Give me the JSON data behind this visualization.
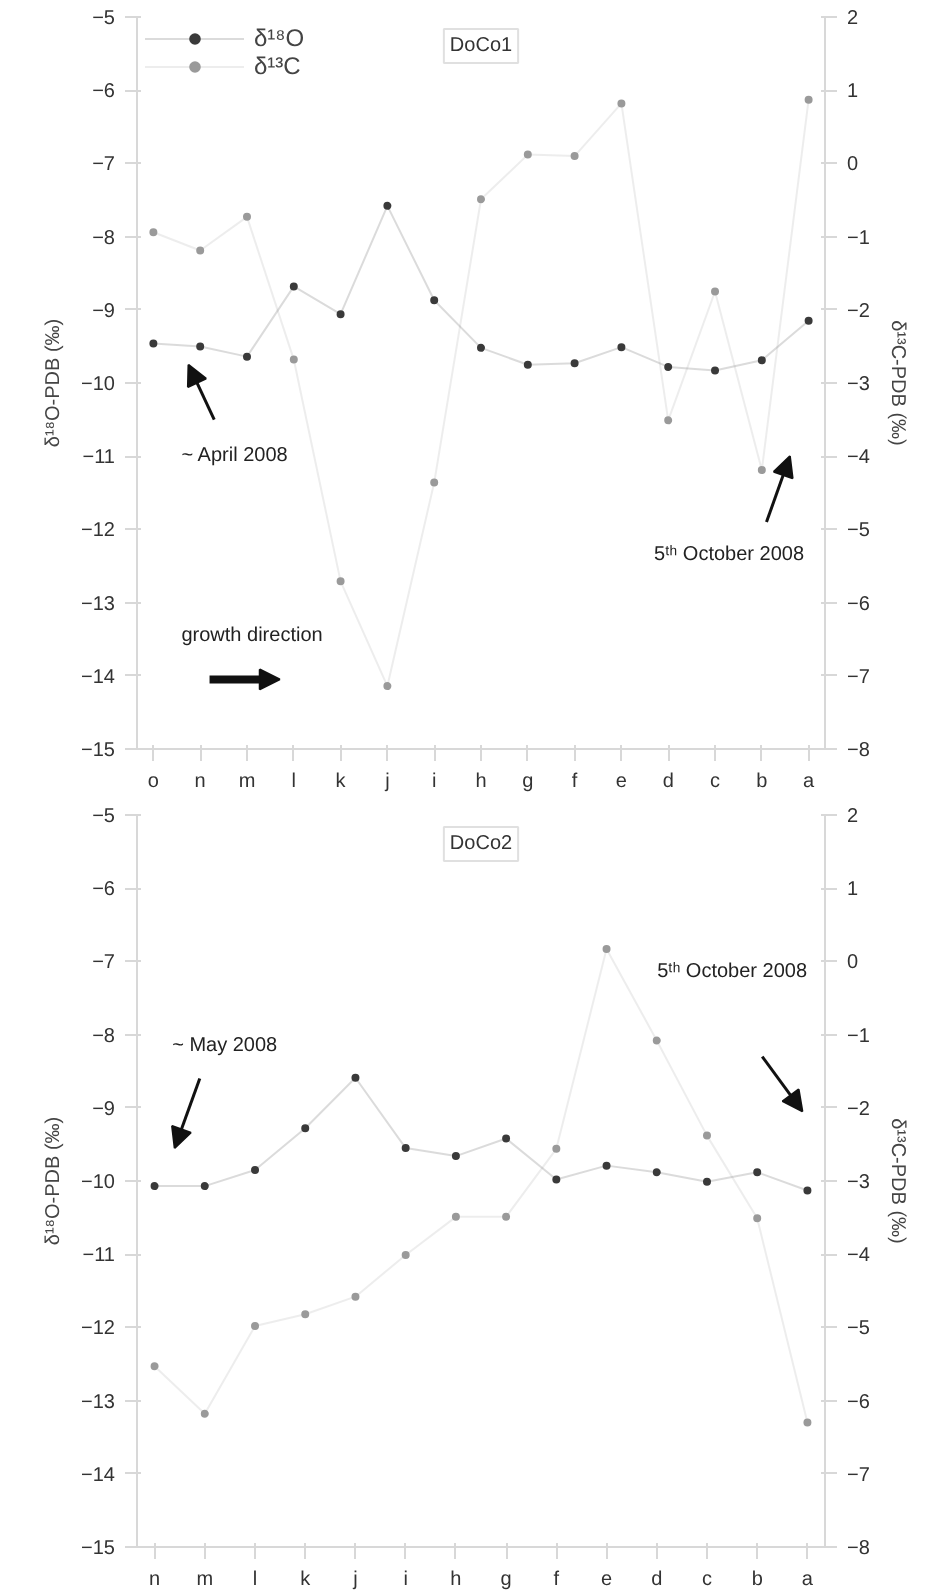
{
  "chart_data": [
    {
      "type": "line",
      "title": "DoCo1",
      "ylabel": "δ¹⁸O-PDB (‰)",
      "y2label": "δ¹³C-PDB (‰)",
      "categories": [
        "o",
        "n",
        "m",
        "l",
        "k",
        "j",
        "i",
        "h",
        "g",
        "f",
        "e",
        "d",
        "c",
        "b",
        "a"
      ],
      "ylim": [
        -15,
        -5
      ],
      "yticks": [
        -15,
        -14,
        -13,
        -12,
        -11,
        -10,
        -9,
        -8,
        -7,
        -6,
        -5
      ],
      "y2lim": [
        -8,
        2
      ],
      "y2ticks": [
        -8,
        -7,
        -6,
        -5,
        -4,
        -3,
        -2,
        -1,
        0,
        1,
        2
      ],
      "marker": "circle",
      "line_style": "solid",
      "grid": false,
      "legend": "top left",
      "series": [
        {
          "name": "δ¹⁸O",
          "color": "#3a3a3a",
          "values": [
            -9.46,
            -9.5,
            -9.64,
            -8.68,
            -9.06,
            -7.58,
            -8.87,
            -9.52,
            -9.75,
            -9.73,
            -9.51,
            -9.78,
            -9.83,
            -9.69,
            -9.15
          ]
        },
        {
          "name": "δ¹³C",
          "color": "#9a9a9a",
          "axis": "y2",
          "values": [
            -0.94,
            -1.19,
            -0.73,
            -2.68,
            -5.71,
            -7.14,
            -4.36,
            -0.49,
            0.12,
            0.1,
            0.82,
            -3.51,
            -1.75,
            -4.19,
            0.87
          ]
        }
      ],
      "annotations": [
        "~ April 2008",
        "5ᵗʰ October 2008",
        "growth direction"
      ]
    },
    {
      "type": "line",
      "title": "DoCo2",
      "ylabel": "δ¹⁸O-PDB (‰)",
      "y2label": "δ¹³C-PDB (‰)",
      "categories": [
        "n",
        "m",
        "l",
        "k",
        "j",
        "i",
        "h",
        "g",
        "f",
        "e",
        "d",
        "c",
        "b",
        "a"
      ],
      "ylim": [
        -15,
        -5
      ],
      "yticks": [
        -15,
        -14,
        -13,
        -12,
        -11,
        -10,
        -9,
        -8,
        -7,
        -6,
        -5
      ],
      "y2lim": [
        -8,
        2
      ],
      "y2ticks": [
        -8,
        -7,
        -6,
        -5,
        -4,
        -3,
        -2,
        -1,
        0,
        1,
        2
      ],
      "marker": "circle",
      "line_style": "solid",
      "grid": false,
      "legend": false,
      "series": [
        {
          "color": "#3a3a3a",
          "values": [
            -10.07,
            -10.07,
            -9.85,
            -9.28,
            -8.59,
            -9.55,
            -9.66,
            -9.42,
            -9.98,
            -9.79,
            -9.88,
            -10.01,
            -9.88,
            -10.13
          ]
        },
        {
          "color": "#9a9a9a",
          "axis": "y2",
          "values": [
            -5.53,
            -6.18,
            -4.98,
            -4.82,
            -4.58,
            -4.01,
            -3.49,
            -3.49,
            -2.56,
            0.17,
            -1.08,
            -2.38,
            -3.51,
            -6.3
          ]
        }
      ],
      "annotations": [
        "~ May 2008",
        "5ᵗʰ October 2008"
      ]
    }
  ]
}
